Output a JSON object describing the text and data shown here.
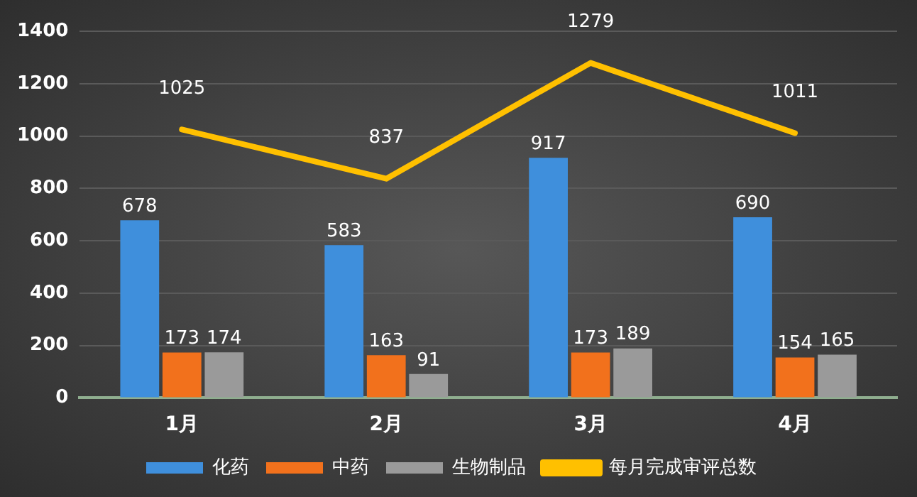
{
  "chart_data": {
    "type": "bar",
    "categories": [
      "1月",
      "2月",
      "3月",
      "4月"
    ],
    "series": [
      {
        "name": "化药",
        "color": "#3f8fdc",
        "values": [
          678,
          583,
          917,
          690
        ]
      },
      {
        "name": "中药",
        "color": "#f2711c",
        "values": [
          173,
          163,
          173,
          154
        ]
      },
      {
        "name": "生物制品",
        "color": "#9a9a9a",
        "values": [
          174,
          91,
          189,
          165
        ]
      },
      {
        "name": "每月完成审评总数",
        "type": "line",
        "color": "#ffc000",
        "values": [
          1025,
          837,
          1279,
          1011
        ]
      }
    ],
    "ylim": [
      0,
      1400
    ],
    "yticks": [
      0,
      200,
      400,
      600,
      800,
      1000,
      1200,
      1400
    ],
    "grid": "y",
    "legend": "bottom",
    "data_labels": true,
    "marker": "none"
  }
}
